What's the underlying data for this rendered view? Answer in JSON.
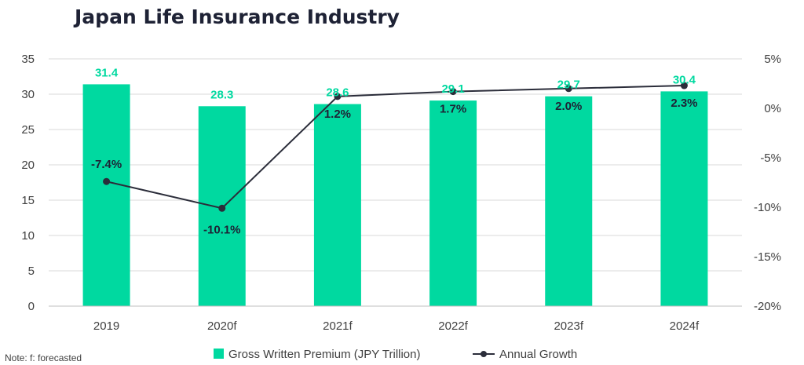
{
  "chart_data": {
    "type": "bar",
    "title": "Japan Life Insurance Industry",
    "categories": [
      "2019",
      "2020f",
      "2021f",
      "2022f",
      "2023f",
      "2024f"
    ],
    "series": [
      {
        "name": "Gross Written Premium (JPY Trillion)",
        "type": "bar",
        "axis": "left",
        "values": [
          31.4,
          28.3,
          28.6,
          29.1,
          29.7,
          30.4
        ],
        "labels": [
          "31.4",
          "28.3",
          "28.6",
          "29.1",
          "29.7",
          "30.4"
        ],
        "color": "#00d9a0"
      },
      {
        "name": "Annual Growth",
        "type": "line",
        "axis": "right",
        "values": [
          -7.4,
          -10.1,
          1.2,
          1.7,
          2.0,
          2.3
        ],
        "labels": [
          "-7.4%",
          "-10.1%",
          "1.2%",
          "1.7%",
          "2.0%",
          "2.3%"
        ],
        "color": "#2b2d3a"
      }
    ],
    "y_left": {
      "ylim": [
        0,
        35
      ],
      "ticks": [
        "0",
        "5",
        "10",
        "15",
        "20",
        "25",
        "30",
        "35"
      ]
    },
    "y_right": {
      "ylim": [
        -20,
        5
      ],
      "ticks": [
        "-20%",
        "-15%",
        "-10%",
        "-5%",
        "0%",
        "5%"
      ]
    },
    "grid": true,
    "legend": "bottom",
    "note": "Note: f: forecasted"
  }
}
